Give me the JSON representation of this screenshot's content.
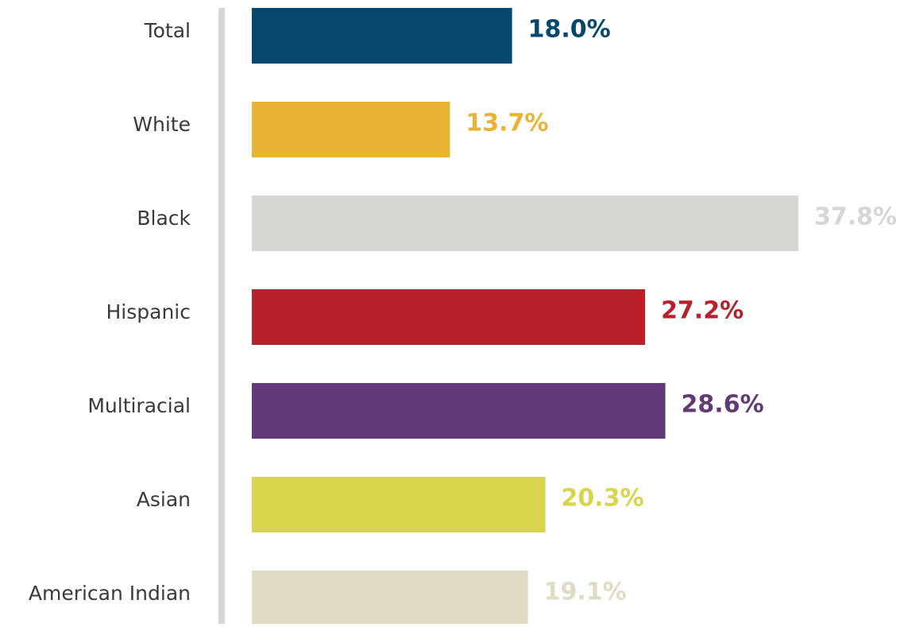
{
  "chart_data": {
    "type": "bar",
    "orientation": "horizontal",
    "categories": [
      "Total",
      "White",
      "Black",
      "Hispanic",
      "Multiracial",
      "Asian",
      "American Indian"
    ],
    "values": [
      18.0,
      13.7,
      37.8,
      27.2,
      28.6,
      20.3,
      19.1
    ],
    "value_labels": [
      "18.0%",
      "13.7%",
      "37.8%",
      "27.2%",
      "28.6%",
      "20.3%",
      "19.1%"
    ],
    "colors": [
      "#06486d",
      "#e9b334",
      "#d6d6d3",
      "#ba2029",
      "#623a77",
      "#d8d54c",
      "#e0dbc3"
    ]
  }
}
